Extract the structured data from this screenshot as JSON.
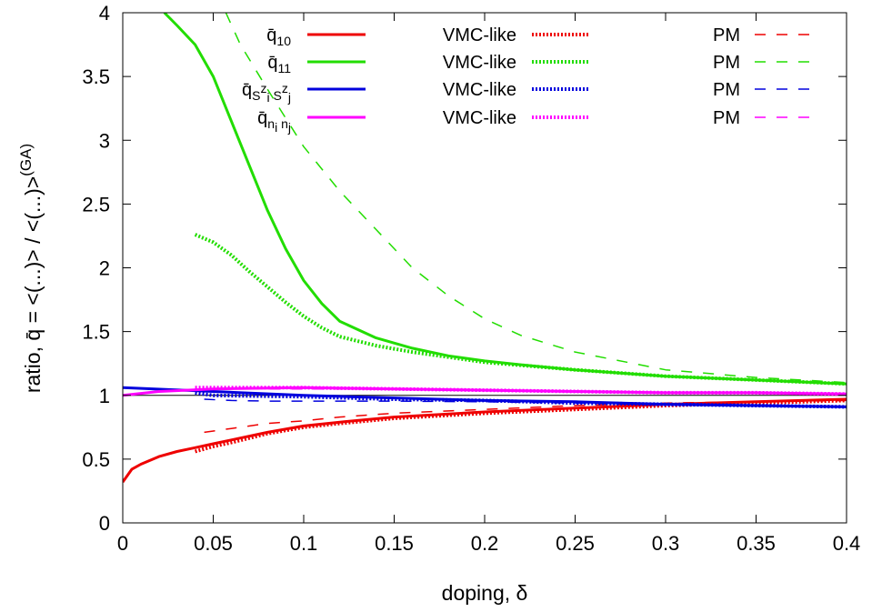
{
  "chart_data": {
    "type": "line",
    "xlabel": "doping, δ",
    "ylabel": "ratio, q̄ = <(...)> / <(...)>(GA)",
    "xlim": [
      0,
      0.4
    ],
    "ylim": [
      0,
      4
    ],
    "xticks": [
      "0",
      "0.05",
      "0.1",
      "0.15",
      "0.2",
      "0.25",
      "0.3",
      "0.35",
      "0.4"
    ],
    "yticks": [
      "0",
      "0.5",
      "1",
      "1.5",
      "2",
      "2.5",
      "3",
      "3.5",
      "4"
    ],
    "grid": false,
    "legend_position": "top",
    "legend": {
      "rows": [
        {
          "label": "q̄10",
          "vmc": "VMC-like",
          "pm": "PM",
          "color": "#ee0000"
        },
        {
          "label": "q̄11",
          "vmc": "VMC-like",
          "pm": "PM",
          "color": "#22dd00"
        },
        {
          "label": "q̄SziSzj",
          "vmc": "VMC-like",
          "pm": "PM",
          "color": "#0000dd"
        },
        {
          "label": "q̄ninj",
          "vmc": "VMC-like",
          "pm": "PM",
          "color": "#ff00ff"
        }
      ]
    },
    "series": [
      {
        "name": "q̄10",
        "style": "solid",
        "color": "#ee0000",
        "x": [
          0,
          0.005,
          0.01,
          0.02,
          0.03,
          0.04,
          0.05,
          0.06,
          0.08,
          0.1,
          0.12,
          0.15,
          0.2,
          0.25,
          0.3,
          0.35,
          0.4
        ],
        "y": [
          0.32,
          0.42,
          0.46,
          0.52,
          0.56,
          0.59,
          0.62,
          0.65,
          0.71,
          0.76,
          0.79,
          0.83,
          0.87,
          0.9,
          0.93,
          0.95,
          0.97
        ]
      },
      {
        "name": "q̄10 VMC-like",
        "style": "dotted",
        "color": "#ee0000",
        "x": [
          0.04,
          0.05,
          0.06,
          0.08,
          0.1,
          0.12,
          0.15,
          0.2,
          0.25,
          0.3,
          0.35,
          0.4
        ],
        "y": [
          0.56,
          0.6,
          0.63,
          0.7,
          0.75,
          0.78,
          0.82,
          0.86,
          0.89,
          0.92,
          0.94,
          0.96
        ]
      },
      {
        "name": "q̄10 PM",
        "style": "dashed",
        "color": "#ee0000",
        "x": [
          0.045,
          0.06,
          0.08,
          0.1,
          0.12,
          0.15,
          0.2,
          0.25,
          0.3,
          0.35,
          0.4
        ],
        "y": [
          0.71,
          0.74,
          0.78,
          0.8,
          0.83,
          0.86,
          0.89,
          0.92,
          0.94,
          0.95,
          0.96
        ]
      },
      {
        "name": "q̄11",
        "style": "solid",
        "color": "#22dd00",
        "x": [
          0.023,
          0.03,
          0.04,
          0.05,
          0.06,
          0.07,
          0.08,
          0.09,
          0.1,
          0.11,
          0.12,
          0.14,
          0.16,
          0.18,
          0.2,
          0.22,
          0.25,
          0.3,
          0.35,
          0.4
        ],
        "y": [
          4.0,
          3.9,
          3.75,
          3.5,
          3.15,
          2.8,
          2.45,
          2.15,
          1.9,
          1.72,
          1.58,
          1.45,
          1.37,
          1.31,
          1.27,
          1.24,
          1.2,
          1.15,
          1.12,
          1.09
        ]
      },
      {
        "name": "q̄11 VMC-like",
        "style": "dotted",
        "color": "#22dd00",
        "x": [
          0.04,
          0.05,
          0.06,
          0.07,
          0.08,
          0.09,
          0.1,
          0.11,
          0.12,
          0.14,
          0.16,
          0.18,
          0.2,
          0.25,
          0.3,
          0.35,
          0.4
        ],
        "y": [
          2.26,
          2.2,
          2.1,
          1.97,
          1.85,
          1.73,
          1.62,
          1.53,
          1.46,
          1.39,
          1.34,
          1.3,
          1.26,
          1.2,
          1.15,
          1.12,
          1.09
        ]
      },
      {
        "name": "q̄11 PM",
        "style": "dashed",
        "color": "#22dd00",
        "x": [
          0.057,
          0.065,
          0.08,
          0.1,
          0.12,
          0.14,
          0.16,
          0.18,
          0.2,
          0.22,
          0.25,
          0.3,
          0.35,
          0.4
        ],
        "y": [
          4.0,
          3.75,
          3.4,
          2.95,
          2.6,
          2.3,
          2.0,
          1.78,
          1.6,
          1.47,
          1.34,
          1.2,
          1.14,
          1.1
        ]
      },
      {
        "name": "q̄SziSzj",
        "style": "solid",
        "color": "#0000dd",
        "x": [
          0,
          0.05,
          0.1,
          0.15,
          0.2,
          0.25,
          0.3,
          0.35,
          0.4
        ],
        "y": [
          1.06,
          1.03,
          1.0,
          0.98,
          0.96,
          0.95,
          0.93,
          0.92,
          0.91
        ]
      },
      {
        "name": "q̄SziSzj VMC-like",
        "style": "dotted",
        "color": "#0000dd",
        "x": [
          0.04,
          0.05,
          0.1,
          0.15,
          0.2,
          0.25,
          0.3,
          0.35,
          0.4
        ],
        "y": [
          1.02,
          1.0,
          0.99,
          0.97,
          0.96,
          0.94,
          0.93,
          0.92,
          0.91
        ]
      },
      {
        "name": "q̄SziSzj PM",
        "style": "dashed",
        "color": "#0000dd",
        "x": [
          0.045,
          0.06,
          0.08,
          0.1,
          0.15,
          0.2,
          0.25,
          0.3,
          0.35,
          0.4
        ],
        "y": [
          0.97,
          0.96,
          0.955,
          0.955,
          0.955,
          0.95,
          0.94,
          0.93,
          0.92,
          0.91
        ]
      },
      {
        "name": "q̄ninj",
        "style": "solid",
        "color": "#ff00ff",
        "x": [
          0,
          0.02,
          0.05,
          0.1,
          0.15,
          0.2,
          0.25,
          0.3,
          0.35,
          0.4
        ],
        "y": [
          1.0,
          1.03,
          1.05,
          1.06,
          1.05,
          1.04,
          1.03,
          1.02,
          1.02,
          1.01
        ]
      },
      {
        "name": "q̄ninj VMC-like",
        "style": "dotted",
        "color": "#ff00ff",
        "x": [
          0.04,
          0.05,
          0.1,
          0.15,
          0.2,
          0.25,
          0.3,
          0.35,
          0.4
        ],
        "y": [
          1.06,
          1.06,
          1.06,
          1.05,
          1.04,
          1.03,
          1.02,
          1.02,
          1.01
        ]
      },
      {
        "name": "q̄ninj PM",
        "style": "dashed",
        "color": "#ff00ff",
        "x": [
          0.045,
          0.1,
          0.15,
          0.2,
          0.25,
          0.3,
          0.35,
          0.4
        ],
        "y": [
          1.05,
          1.05,
          1.05,
          1.04,
          1.03,
          1.02,
          1.02,
          1.01
        ]
      }
    ],
    "reference_line": {
      "y": 1.0,
      "color": "#000000"
    }
  }
}
